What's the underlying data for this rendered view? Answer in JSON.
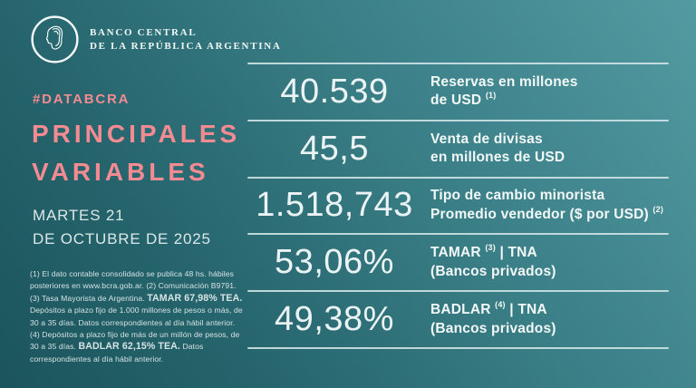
{
  "brand": {
    "logo_icon": "bcra-liberty-head-emblem",
    "name_line1": "BANCO CENTRAL",
    "name_line2": "DE LA REPÚBLICA ARGENTINA"
  },
  "hashtag": "#DATABCRA",
  "title_line1": "PRINCIPALES",
  "title_line2": "VARIABLES",
  "date_line1": "MARTES 21",
  "date_line2": "DE OCTUBRE DE 2025",
  "colors": {
    "accent_pink": "#F28B92",
    "background_light": "#549AA1",
    "background_dark": "#1B545C",
    "text_light": "#EBF3F4",
    "separator": "#CBE1E4"
  },
  "table": {
    "rows": [
      {
        "value": "40.539",
        "label_lines": [
          "Reservas en millones",
          "de USD {1}"
        ]
      },
      {
        "value": "45,5",
        "label_lines": [
          "Venta de divisas",
          "en millones de USD"
        ]
      },
      {
        "value": "1.518,743",
        "label_lines": [
          "Tipo de cambio minorista",
          "Promedio vendedor ($ por USD) {2}"
        ]
      },
      {
        "value": "53,06%",
        "label_lines": [
          "TAMAR {3} | TNA",
          "(Bancos privados)"
        ]
      },
      {
        "value": "49,38%",
        "label_lines": [
          "BADLAR {4} | TNA",
          "(Bancos privados)"
        ]
      }
    ]
  },
  "footnote": {
    "segments": [
      {
        "text": "(1) El dato contable consolidado se publica 48 hs. hábiles posteriores en www.bcra.gob.ar. (2) Comunicación B9791. (3) Tasa Mayorista de Argentina. ",
        "bold": false
      },
      {
        "text": "TAMAR 67,98% TEA.",
        "bold": true
      },
      {
        "text": " Depósitos a plazo fijo de 1.000 millones de pesos o más, de 30 a 35 días. Datos correspondientes al día hábil anterior. (4) Depósitos a plazo fijo de más de un millón de pesos, de 30 a 35 días. ",
        "bold": false
      },
      {
        "text": "BADLAR 62,15% TEA.",
        "bold": true
      },
      {
        "text": " Datos correspondientes al día hábil anterior.",
        "bold": false
      }
    ]
  },
  "chart_data": {
    "type": "table",
    "title": "PRINCIPALES VARIABLES",
    "subtitle": "#DATABCRA",
    "date": "MARTES 21 DE OCTUBRE DE 2025",
    "categories": [
      "Reservas en millones de USD (1)",
      "Venta de divisas en millones de USD",
      "Tipo de cambio minorista Promedio vendedor ($ por USD) (2)",
      "TAMAR (3) | TNA (Bancos privados)",
      "BADLAR (4) | TNA (Bancos privados)"
    ],
    "values": [
      "40.539",
      "45,5",
      "1.518,743",
      "53,06%",
      "49,38%"
    ],
    "numeric_values": [
      40539,
      45.5,
      1518.743,
      53.06,
      49.38
    ],
    "annotations": [
      "TAMAR 67,98% TEA",
      "BADLAR 62,15% TEA"
    ]
  }
}
